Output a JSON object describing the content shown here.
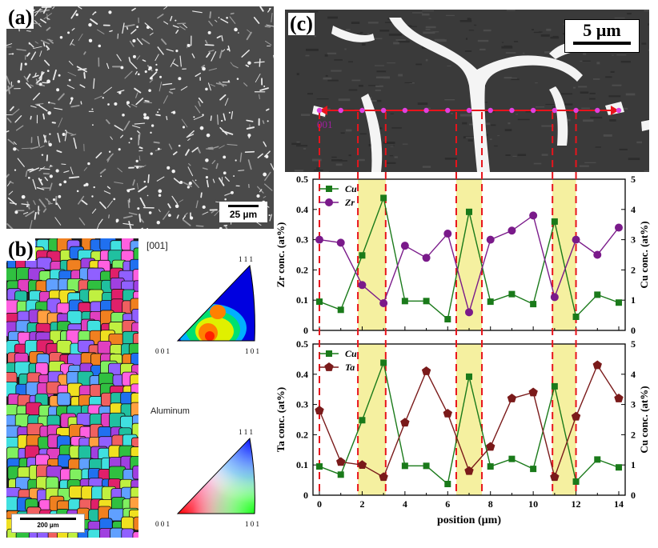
{
  "figure": {
    "panel_a": {
      "label": "(a)",
      "scale_bar": "25 µm"
    },
    "panel_b": {
      "label": "(b)",
      "scale_bar": "200 µm",
      "ipf_direction": "[001]",
      "phase": "Aluminum",
      "triangle_corners": {
        "top": "1 1 1",
        "left": "0 0 1",
        "right": "1 0 1"
      }
    },
    "panel_c": {
      "label": "(c)",
      "scale_bar": "5 µm",
      "line_label": "001"
    }
  },
  "colors": {
    "cu": "#1a7a1a",
    "zr": "#7a1a8a",
    "ta": "#7a1a1a",
    "band": "#f5f0a0",
    "dash": "#e8141c",
    "profile_line": "#e8141c"
  },
  "chart_data": [
    {
      "type": "line",
      "title": "",
      "xlabel": "",
      "ylabel_left": "Zr conc. (at%)",
      "ylabel_right": "Cu conc. (at%)",
      "x": [
        0,
        1,
        2,
        3,
        4,
        5,
        6,
        7,
        8,
        9,
        10,
        11,
        12,
        13,
        14
      ],
      "xlim": [
        -0.3,
        14.3
      ],
      "ylim_left": [
        0,
        0.5
      ],
      "ylim_right": [
        0,
        5
      ],
      "yticks_left": [
        "0",
        "0.1",
        "0.2",
        "0.3",
        "0.4",
        "0.5"
      ],
      "yticks_right": [
        "0",
        "1",
        "2",
        "3",
        "4",
        "5"
      ],
      "series": [
        {
          "name": "Cu",
          "axis": "right",
          "marker": "square",
          "values": [
            0.95,
            0.68,
            2.48,
            4.38,
            0.97,
            0.97,
            0.37,
            3.92,
            0.95,
            1.2,
            0.87,
            3.6,
            0.45,
            1.18,
            0.92
          ]
        },
        {
          "name": "Zr",
          "axis": "left",
          "marker": "circle",
          "values": [
            0.3,
            0.29,
            0.15,
            0.09,
            0.28,
            0.24,
            0.32,
            0.06,
            0.3,
            0.33,
            0.38,
            0.11,
            0.3,
            0.25,
            0.34
          ]
        }
      ],
      "bands": [
        [
          1.8,
          3.1
        ],
        [
          6.4,
          7.6
        ],
        [
          10.9,
          12.0
        ]
      ],
      "legend_position": "top-left"
    },
    {
      "type": "line",
      "title": "",
      "xlabel": "position (µm)",
      "ylabel_left": "Ta conc. (at%)",
      "ylabel_right": "Cu conc. (at%)",
      "x": [
        0,
        1,
        2,
        3,
        4,
        5,
        6,
        7,
        8,
        9,
        10,
        11,
        12,
        13,
        14
      ],
      "xlim": [
        -0.3,
        14.3
      ],
      "ylim_left": [
        0,
        0.5
      ],
      "ylim_right": [
        0,
        5
      ],
      "xticks": [
        "0",
        "2",
        "4",
        "6",
        "8",
        "10",
        "12",
        "14"
      ],
      "yticks_left": [
        "0",
        "0.1",
        "0.2",
        "0.3",
        "0.4",
        "0.5"
      ],
      "yticks_right": [
        "0",
        "1",
        "2",
        "3",
        "4",
        "5"
      ],
      "series": [
        {
          "name": "Cu",
          "axis": "right",
          "marker": "square",
          "values": [
            0.95,
            0.68,
            2.48,
            4.38,
            0.97,
            0.97,
            0.37,
            3.92,
            0.95,
            1.2,
            0.87,
            3.6,
            0.45,
            1.18,
            0.92
          ]
        },
        {
          "name": "Ta",
          "axis": "left",
          "marker": "pentagon",
          "values": [
            0.28,
            0.11,
            0.1,
            0.06,
            0.24,
            0.41,
            0.27,
            0.08,
            0.16,
            0.32,
            0.34,
            0.06,
            0.26,
            0.43,
            0.32
          ]
        }
      ],
      "bands": [
        [
          1.8,
          3.1
        ],
        [
          6.4,
          7.6
        ],
        [
          10.9,
          12.0
        ]
      ],
      "legend_position": "top-left"
    }
  ]
}
